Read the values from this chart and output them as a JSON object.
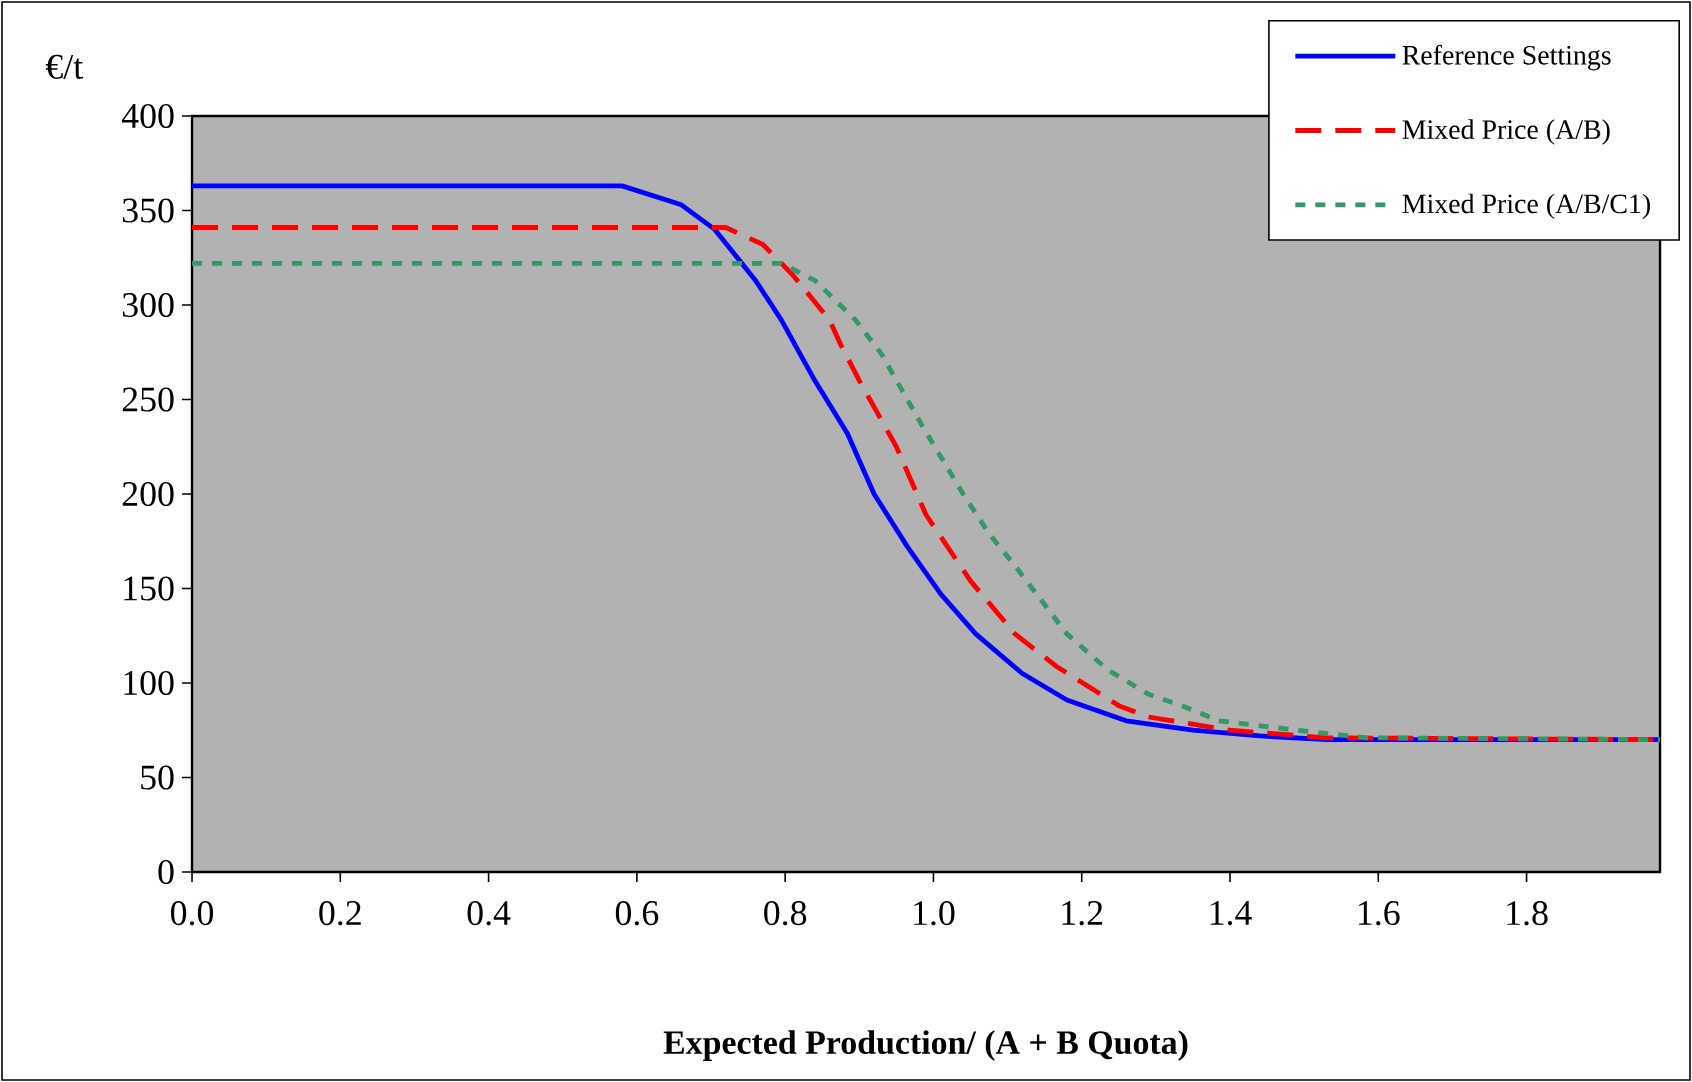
{
  "chart_data": {
    "type": "line",
    "xlabel": "Expected Production/ (A + B Quota)",
    "ylabel": "€/t",
    "xlim": [
      0,
      1.98
    ],
    "ylim": [
      0,
      400
    ],
    "xticks": [
      {
        "value": 0,
        "label": "0.0"
      },
      {
        "value": 0.2,
        "label": "0.2"
      },
      {
        "value": 0.4,
        "label": "0.4"
      },
      {
        "value": 0.6,
        "label": "0.6"
      },
      {
        "value": 0.8,
        "label": "0.8"
      },
      {
        "value": 1.0,
        "label": "1.0"
      },
      {
        "value": 1.2,
        "label": "1.2"
      },
      {
        "value": 1.4,
        "label": "1.4"
      },
      {
        "value": 1.6,
        "label": "1.6"
      },
      {
        "value": 1.8,
        "label": "1.8"
      }
    ],
    "yticks": [
      0,
      50,
      100,
      150,
      200,
      250,
      300,
      350,
      400
    ],
    "grid": false,
    "legend": "top right",
    "marker": "none",
    "series": [
      {
        "name": "Reference Settings",
        "color": "#0000ff",
        "line_style": "solid",
        "x": [
          0,
          0.58,
          0.66,
          0.705,
          0.76,
          0.795,
          0.84,
          0.884,
          0.92,
          0.965,
          1.01,
          1.057,
          1.12,
          1.18,
          1.26,
          1.35,
          1.44,
          1.53,
          1.98
        ],
        "values": [
          363,
          363,
          353,
          340,
          313,
          292,
          260,
          232,
          200,
          172,
          147,
          126,
          105,
          91,
          80,
          75,
          72,
          70,
          70
        ]
      },
      {
        "name": "Mixed Price (A/B)",
        "color": "#ff0000",
        "line_style": "dashed",
        "x": [
          0,
          0.72,
          0.77,
          0.81,
          0.86,
          0.875,
          0.9,
          0.95,
          0.99,
          1.05,
          1.11,
          1.165,
          1.25,
          1.29,
          1.4,
          1.53,
          1.98
        ],
        "values": [
          341,
          341,
          332,
          316,
          292,
          279,
          260,
          225,
          189,
          154,
          126,
          109,
          88,
          82,
          75,
          71,
          70
        ]
      },
      {
        "name": "Mixed Price (A/B/C1)",
        "color": "#339966",
        "line_style": "dotted",
        "x": [
          0,
          0.795,
          0.84,
          0.895,
          0.93,
          0.985,
          1.04,
          1.075,
          1.11,
          1.18,
          1.235,
          1.29,
          1.335,
          1.385,
          1.49,
          1.585,
          1.98
        ],
        "values": [
          322,
          322,
          313,
          292,
          274,
          236,
          200,
          179,
          162,
          126,
          107,
          94,
          88,
          80,
          75,
          71,
          70
        ]
      }
    ]
  }
}
